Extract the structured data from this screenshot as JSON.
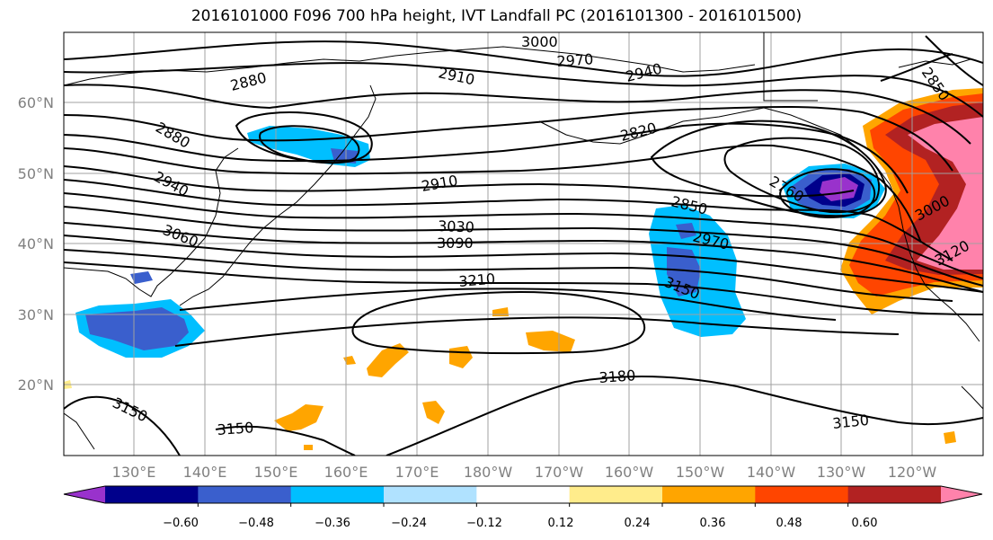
{
  "title": "2016101000 F096 700 hPa height, IVT Landfall PC (2016101300 - 2016101500)",
  "lat_labels": [
    "60°N",
    "50°N",
    "40°N",
    "30°N",
    "20°N"
  ],
  "lon_labels": [
    "130°E",
    "140°E",
    "150°E",
    "160°E",
    "170°E",
    "180°W",
    "170°W",
    "160°W",
    "150°W",
    "140°W",
    "130°W",
    "120°W"
  ],
  "contour_labels": [
    "3000",
    "2970",
    "2940",
    "2880",
    "2910",
    "2850",
    "2820",
    "2880",
    "2940",
    "2910",
    "2760",
    "3060",
    "3030",
    "3090",
    "2850",
    "2970",
    "3000",
    "3120",
    "3210",
    "3150",
    "3180",
    "3150",
    "3150",
    "3150"
  ],
  "colorbar": {
    "tick_labels": [
      "−0.60",
      "−0.48",
      "−0.36",
      "−0.24",
      "−0.12",
      "0.12",
      "0.24",
      "0.36",
      "0.48",
      "0.60"
    ],
    "colors": [
      "#9932CC",
      "#00008B",
      "#3A5FCD",
      "#00BFFF",
      "#B0E2FF",
      "#FFFFFF",
      "#FFEC8B",
      "#FFA500",
      "#FF4500",
      "#B22222",
      "#FF82AB"
    ]
  },
  "shading_colors": {
    "blue_light": "#00BFFF",
    "blue_mid": "#3A5FCD",
    "blue_dark": "#00008B",
    "purple": "#9932CC",
    "yellow": "#FFEC8B",
    "orange": "#FFA500",
    "red_orange": "#FF4500",
    "dark_red": "#B22222",
    "pink": "#FF82AB"
  }
}
